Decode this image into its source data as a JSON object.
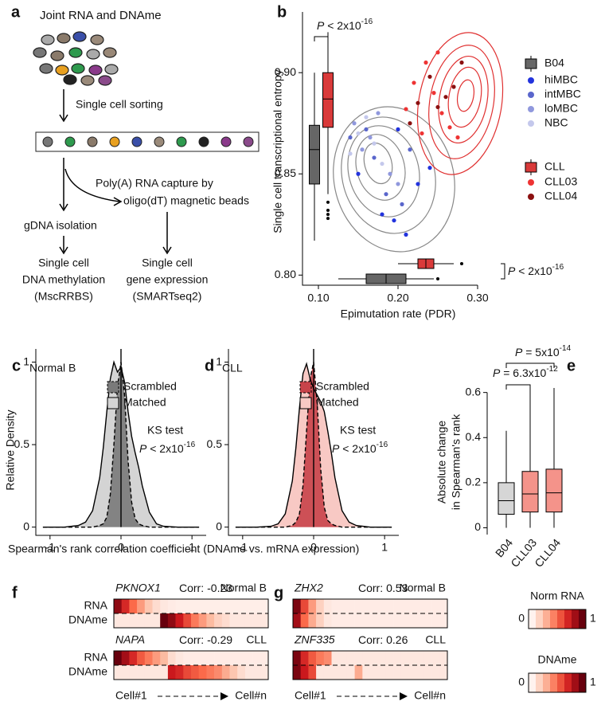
{
  "panel_a": {
    "label": "a",
    "title": "Joint RNA and DNAme",
    "step1": "Single cell sorting",
    "capture": [
      "Poly(A) RNA capture by",
      "oligo(dT) magnetic beads"
    ],
    "left": [
      "gDNA isolation",
      "Single cell",
      "DNA methylation",
      "(MscRRBS)"
    ],
    "right": [
      "Single cell",
      "gene expression",
      "(SMARTseq2)"
    ]
  },
  "chart_data": [
    {
      "type": "scatter",
      "label": "b",
      "xlabel": "Epimutation rate (PDR)",
      "ylabel": "Single cell transcriptional entropy",
      "xlim": [
        0.08,
        0.3
      ],
      "ylim": [
        0.795,
        0.93
      ],
      "xticks": [
        {
          "value": 0.1,
          "label": "0.10"
        },
        {
          "value": 0.2,
          "label": "0.20"
        },
        {
          "value": 0.3,
          "label": "0.30"
        }
      ],
      "yticks": [
        {
          "value": 0.8,
          "label": "0.80"
        },
        {
          "value": 0.85,
          "label": "0.85"
        },
        {
          "value": 0.9,
          "label": "0.90"
        }
      ],
      "groups": [
        {
          "name": "B04",
          "color": "#666666",
          "box_y": {
            "whisker_low": 0.817,
            "q1": 0.845,
            "median": 0.862,
            "q3": 0.874,
            "whisker_high": 0.9,
            "outliers": []
          },
          "box_x": {
            "whisker_low": 0.125,
            "q1": 0.16,
            "median": 0.185,
            "q3": 0.21,
            "whisker_high": 0.245,
            "outliers": [
              0.25
            ]
          },
          "series": [
            {
              "name": "hiMBC",
              "color": "#2233dd",
              "x": [
                0.15,
                0.18,
                0.195,
                0.21,
                0.225,
                0.24,
                0.2
              ],
              "y": [
                0.85,
                0.83,
                0.827,
                0.82,
                0.845,
                0.853,
                0.872
              ]
            },
            {
              "name": "intMBC",
              "color": "#5a66cc",
              "x": [
                0.14,
                0.16,
                0.17,
                0.185,
                0.205,
                0.215
              ],
              "y": [
                0.868,
                0.872,
                0.858,
                0.84,
                0.835,
                0.862
              ]
            },
            {
              "name": "loMBC",
              "color": "#9098dd",
              "x": [
                0.145,
                0.155,
                0.165,
                0.175,
                0.19,
                0.2
              ],
              "y": [
                0.875,
                0.862,
                0.868,
                0.88,
                0.85,
                0.845
              ]
            },
            {
              "name": "NBC",
              "color": "#c4c8ec",
              "x": [
                0.14,
                0.15,
                0.16,
                0.17,
                0.18
              ],
              "y": [
                0.86,
                0.87,
                0.878,
                0.865,
                0.855
              ]
            }
          ]
        },
        {
          "name": "CLL",
          "color": "#d93a3a",
          "box_y": {
            "whisker_low": 0.84,
            "q1": 0.873,
            "median": 0.887,
            "q3": 0.9,
            "whisker_high": 0.92,
            "outliers": [
              0.836,
              0.832,
              0.83,
              0.828
            ]
          },
          "box_x": {
            "whisker_low": 0.2,
            "q1": 0.225,
            "median": 0.235,
            "q3": 0.245,
            "whisker_high": 0.27,
            "outliers": [
              0.28
            ]
          },
          "series": [
            {
              "name": "CLL03",
              "color": "#ee3333",
              "x": [
                0.21,
                0.22,
                0.235,
                0.245,
                0.255,
                0.265,
                0.275,
                0.25,
                0.23
              ],
              "y": [
                0.882,
                0.895,
                0.905,
                0.89,
                0.88,
                0.873,
                0.868,
                0.91,
                0.87
              ]
            },
            {
              "name": "CLL04",
              "color": "#8b1010",
              "x": [
                0.215,
                0.225,
                0.24,
                0.25,
                0.26,
                0.27,
                0.28
              ],
              "y": [
                0.875,
                0.885,
                0.898,
                0.883,
                0.888,
                0.893,
                0.905
              ]
            }
          ]
        }
      ],
      "annotation_top": {
        "p": "P",
        "text": " < 2x10",
        "exponent": "-16"
      },
      "annotation_right": {
        "p": "P",
        "text": " < 2x10",
        "exponent": "-16"
      }
    },
    {
      "type": "area",
      "label": "c",
      "subtitle": "Normal B",
      "ylabel": "Relative Density",
      "xlabel": "Spearman's rank correlation coefficient  (DNAme vs. mRNA expression)",
      "x": [
        -1.1,
        -0.8,
        -0.6,
        -0.5,
        -0.4,
        -0.3,
        -0.25,
        -0.2,
        -0.15,
        -0.1,
        -0.05,
        0,
        0.05,
        0.1,
        0.15,
        0.2,
        0.25,
        0.3,
        0.4,
        0.5,
        0.6,
        0.8,
        1.1
      ],
      "series": [
        {
          "name": "Matched",
          "color": "#d4d4d4",
          "values": [
            0,
            0,
            0.01,
            0.03,
            0.1,
            0.3,
            0.48,
            0.7,
            0.9,
            1,
            0.94,
            0.97,
            0.88,
            0.7,
            0.55,
            0.45,
            0.36,
            0.25,
            0.09,
            0.02,
            0.005,
            0,
            0
          ]
        },
        {
          "name": "Scrambled",
          "color": "#7a7a7a",
          "dashed": true,
          "values": [
            0,
            0,
            0,
            0,
            0,
            0.01,
            0.02,
            0.06,
            0.2,
            0.5,
            0.85,
            1,
            0.8,
            0.4,
            0.15,
            0.05,
            0.02,
            0.01,
            0,
            0,
            0,
            0,
            0
          ]
        }
      ],
      "xlim": [
        -1.2,
        1.2
      ],
      "ylim": [
        -0.05,
        1.08
      ],
      "xticks": [
        -1,
        0,
        1
      ],
      "yticks": [
        0,
        0.5,
        1
      ],
      "reference_line": 0,
      "test": "KS test",
      "annotation": {
        "p": "P",
        "text": " < 2x10",
        "exponent": "-16"
      }
    },
    {
      "type": "area",
      "label": "d",
      "subtitle": "CLL",
      "x": [
        -1.1,
        -0.8,
        -0.6,
        -0.5,
        -0.4,
        -0.3,
        -0.25,
        -0.2,
        -0.15,
        -0.1,
        -0.05,
        0,
        0.05,
        0.1,
        0.15,
        0.2,
        0.25,
        0.3,
        0.4,
        0.5,
        0.6,
        0.8,
        1.1
      ],
      "series": [
        {
          "name": "Matched",
          "color": "#f8c9c4",
          "values": [
            0,
            0,
            0.005,
            0.02,
            0.08,
            0.28,
            0.48,
            0.72,
            0.93,
            0.99,
            0.9,
            0.84,
            0.8,
            0.76,
            0.7,
            0.58,
            0.45,
            0.3,
            0.1,
            0.03,
            0.01,
            0,
            0
          ]
        },
        {
          "name": "Scrambled",
          "color": "#c8434a",
          "dashed": true,
          "values": [
            0,
            0,
            0,
            0,
            0,
            0.01,
            0.03,
            0.08,
            0.25,
            0.58,
            0.9,
            1,
            0.75,
            0.35,
            0.12,
            0.04,
            0.02,
            0.01,
            0,
            0,
            0,
            0,
            0
          ]
        }
      ],
      "xlim": [
        -1.2,
        1.2
      ],
      "ylim": [
        -0.05,
        1.08
      ],
      "xticks": [
        -1,
        0,
        1
      ],
      "yticks": [
        0,
        0.5,
        1
      ],
      "reference_line": 0,
      "test": "KS test",
      "annotation": {
        "p": "P",
        "text": " < 2x10",
        "exponent": "-16"
      }
    },
    {
      "type": "box",
      "label": "e",
      "ylabel": [
        "Absolute change",
        "in Spearman's rank"
      ],
      "categories": [
        "B04",
        "CLL03",
        "CLL04"
      ],
      "colors": [
        "#d6d6d6",
        "#f4938a",
        "#f4938a"
      ],
      "boxes": [
        {
          "whisker_low": 0,
          "q1": 0.06,
          "median": 0.12,
          "q3": 0.2,
          "whisker_high": 0.43
        },
        {
          "whisker_low": 0,
          "q1": 0.07,
          "median": 0.15,
          "q3": 0.25,
          "whisker_high": 0.63
        },
        {
          "whisker_low": 0,
          "q1": 0.07,
          "median": 0.155,
          "q3": 0.26,
          "whisker_high": 0.62
        }
      ],
      "ylim": [
        -0.03,
        0.62
      ],
      "yticks": [
        0,
        0.2,
        0.4,
        0.6
      ],
      "annotations": [
        {
          "p": "P",
          "text": " = 5x10",
          "exponent": "-14"
        },
        {
          "p": "P",
          "text": " = 6.3x10",
          "exponent": "-12"
        }
      ]
    },
    {
      "type": "heatmap",
      "label": "f",
      "row_labels": [
        "RNA",
        "DNAme"
      ],
      "x_start": "Cell#1",
      "x_end": "Cell#n",
      "panels": [
        {
          "gene": "PKNOX1",
          "corr_label": "Corr:",
          "corr": -0.23,
          "context": "Normal B",
          "rows": [
            [
              0.9,
              0.7,
              0.5,
              0.35,
              0.2,
              0.1,
              0.05,
              0.03,
              0.02,
              0.02,
              0.02,
              0.02,
              0.02,
              0.02,
              0.02,
              0.02,
              0.02,
              0.02,
              0.02,
              0.02
            ],
            [
              0.05,
              0.05,
              0.05,
              0.05,
              0.05,
              0.05,
              1,
              0.9,
              0.75,
              0.6,
              0.45,
              0.35,
              0.25,
              0.15,
              0.1,
              0.05,
              0.05,
              0.05,
              0.05,
              0.05
            ]
          ]
        },
        {
          "gene": "NAPA",
          "corr_label": "Corr:",
          "corr": -0.29,
          "context": "CLL",
          "rows": [
            [
              1,
              0.85,
              0.7,
              0.55,
              0.45,
              0.35,
              0.25,
              0.1,
              0.05,
              0.03,
              0.03,
              0.03,
              0.03,
              0.03,
              0.03,
              0.03,
              0.03,
              0.03,
              0.03,
              0.03
            ],
            [
              0.05,
              0.05,
              0.05,
              0.05,
              0.05,
              0.05,
              0.05,
              0.75,
              0.7,
              0.6,
              0.55,
              0.5,
              0.45,
              0.4,
              0.3,
              0.2,
              0.1,
              0.05,
              0.05,
              0.05
            ]
          ]
        }
      ]
    },
    {
      "type": "heatmap",
      "label": "g",
      "x_start": "Cell#1",
      "x_end": "Cell#n",
      "panels": [
        {
          "gene": "ZHX2",
          "corr_label": "Corr:",
          "corr": 0.53,
          "context": "Normal B",
          "rows": [
            [
              0.95,
              0.6,
              0.35,
              0.15,
              0.05,
              0.03,
              0.03,
              0.03,
              0.03,
              0.03,
              0.03,
              0.03,
              0.03,
              0.03,
              0.03,
              0.03,
              0.03,
              0.03,
              0.03,
              0.03
            ],
            [
              0.85,
              0.5,
              0.3,
              0.15,
              0.05,
              0.03,
              0.03,
              0.03,
              0.03,
              0.03,
              0.03,
              0.03,
              0.03,
              0.03,
              0.03,
              0.03,
              0.03,
              0.03,
              0.03,
              0.03
            ]
          ]
        },
        {
          "gene": "ZNF335",
          "corr_label": "Corr:",
          "corr": 0.26,
          "context": "CLL",
          "rows": [
            [
              0.95,
              0.7,
              0.55,
              0.45,
              0.4,
              0.05,
              0.05,
              0.05,
              0.05,
              0.05,
              0.05,
              0.05,
              0.05,
              0.05,
              0.05,
              0.05,
              0.05,
              0.05,
              0.05,
              0.05
            ],
            [
              0.95,
              0.75,
              0.6,
              0.05,
              0.05,
              0.05,
              0.05,
              0.05,
              0.3,
              0.05,
              0.05,
              0.05,
              0.05,
              0.05,
              0.05,
              0.05,
              0.05,
              0.05,
              0.05,
              0.05
            ]
          ]
        }
      ]
    }
  ],
  "colormap": [
    "#fff2ee",
    "#fcbba1",
    "#fb6a4a",
    "#cb181d",
    "#67000d"
  ],
  "colorbars": [
    {
      "title": "Norm RNA",
      "ticks": [
        0,
        1
      ]
    },
    {
      "title": "DNAme",
      "ticks": [
        0,
        1
      ]
    }
  ]
}
